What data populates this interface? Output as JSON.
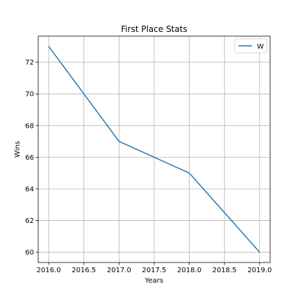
{
  "chart_data": {
    "type": "line",
    "title": "First Place Stats",
    "xlabel": "Years",
    "ylabel": "Wins",
    "x": [
      2016,
      2017,
      2018,
      2019
    ],
    "series": [
      {
        "name": "W",
        "values": [
          73,
          67,
          65,
          60
        ],
        "color": "#1f77b4"
      }
    ],
    "xlim": [
      2015.85,
      2019.15
    ],
    "ylim": [
      59.35,
      73.65
    ],
    "xticks": [
      2016.0,
      2016.5,
      2017.0,
      2017.5,
      2018.0,
      2018.5,
      2019.0
    ],
    "xtick_labels": [
      "2016.0",
      "2016.5",
      "2017.0",
      "2017.5",
      "2018.0",
      "2018.5",
      "2019.0"
    ],
    "yticks": [
      60,
      62,
      64,
      66,
      68,
      70,
      72
    ],
    "ytick_labels": [
      "60",
      "62",
      "64",
      "66",
      "68",
      "70",
      "72"
    ],
    "grid": true,
    "legend_position": "top-right"
  }
}
